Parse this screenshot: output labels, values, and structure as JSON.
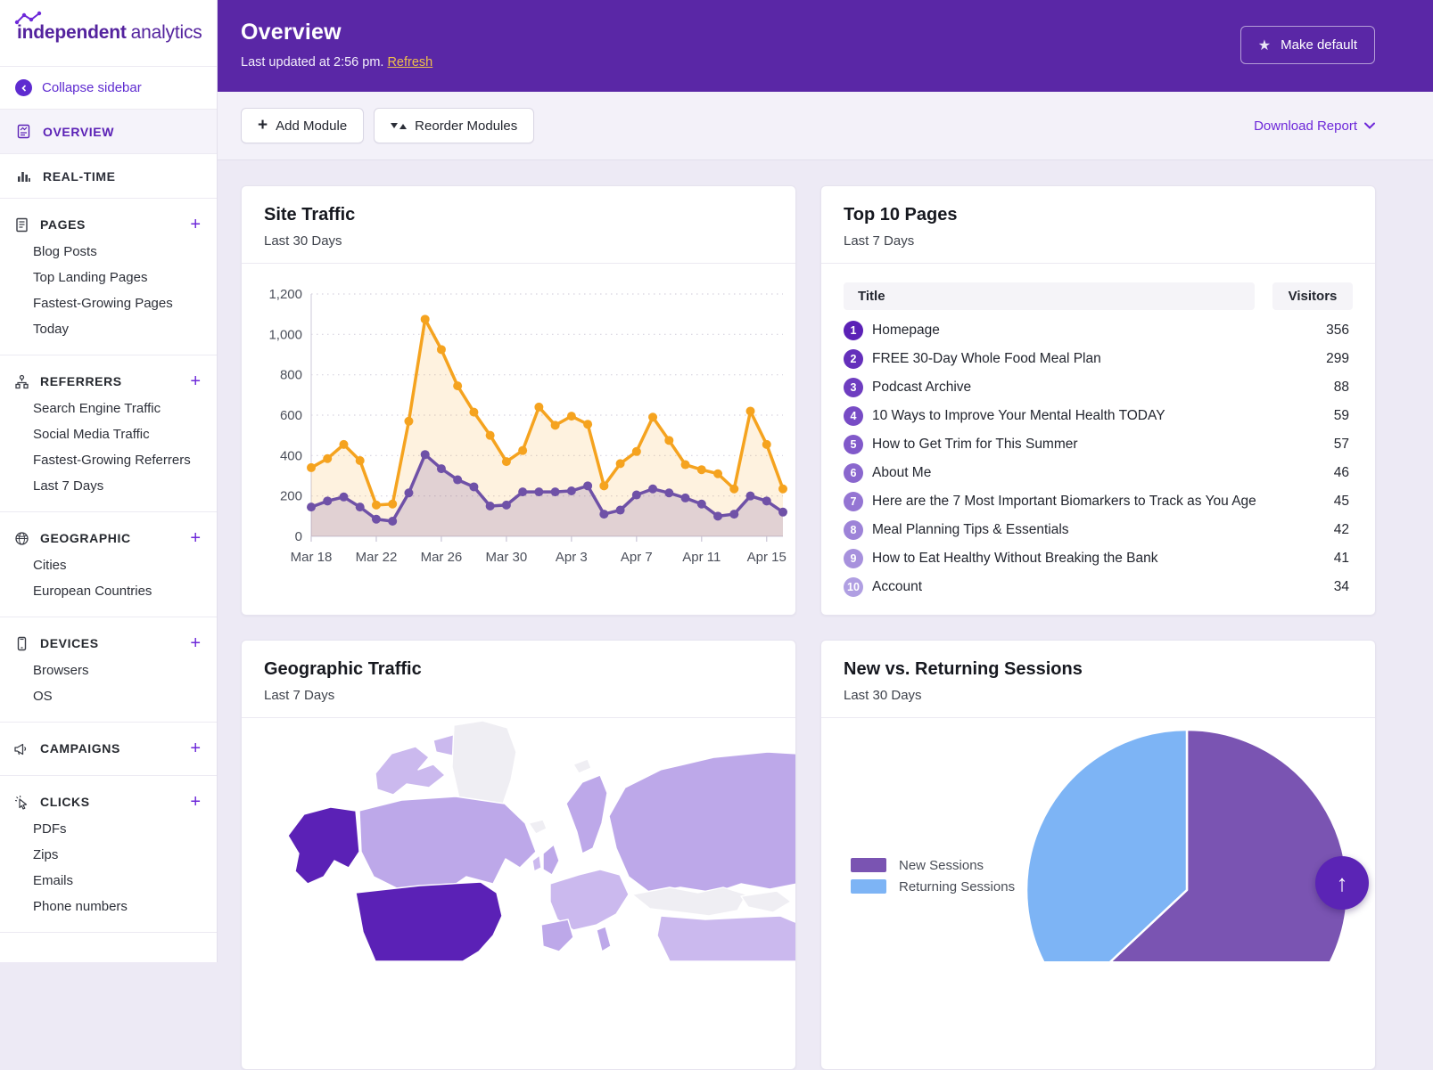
{
  "brand": {
    "name_bold": "independent",
    "name_light": "analytics"
  },
  "colors": {
    "header_purple": "#5a27a6",
    "accent_purple": "#6d28d9",
    "active_purple": "#5b21b6",
    "refresh_gold": "#efc04a",
    "line_orange": "#f5a31f",
    "line_purple": "#6f51a7",
    "pie_purple": "#7a54b2",
    "pie_blue": "#7db4f5",
    "rank_dark": "#5b21b6",
    "rank_light": "#b09fe2",
    "map_high": "#5b21b6",
    "map_medium": "#bda8e9",
    "map_low": "#cbb9ee",
    "map_none": "#efeef3"
  },
  "sidebar": {
    "collapse_label": "Collapse sidebar",
    "top_items": [
      {
        "label": "OVERVIEW",
        "icon": "overview-icon",
        "active": true
      },
      {
        "label": "REAL-TIME",
        "icon": "realtime-icon",
        "active": false
      }
    ],
    "sections": [
      {
        "label": "PAGES",
        "icon": "pages-icon",
        "items": [
          "Blog Posts",
          "Top Landing Pages",
          "Fastest-Growing Pages",
          "Today"
        ]
      },
      {
        "label": "REFERRERS",
        "icon": "referrers-icon",
        "items": [
          "Search Engine Traffic",
          "Social Media Traffic",
          "Fastest-Growing Referrers",
          "Last 7 Days"
        ]
      },
      {
        "label": "GEOGRAPHIC",
        "icon": "globe-icon",
        "items": [
          "Cities",
          "European Countries"
        ]
      },
      {
        "label": "DEVICES",
        "icon": "device-icon",
        "items": [
          "Browsers",
          "OS"
        ]
      },
      {
        "label": "CAMPAIGNS",
        "icon": "megaphone-icon",
        "items": []
      },
      {
        "label": "CLICKS",
        "icon": "cursor-icon",
        "items": [
          "PDFs",
          "Zips",
          "Emails",
          "Phone numbers"
        ]
      }
    ]
  },
  "header": {
    "title": "Overview",
    "last_updated": "Last updated at 2:56 pm.",
    "refresh_label": "Refresh",
    "make_default_label": "Make default"
  },
  "toolbar": {
    "add_module": "Add Module",
    "reorder_modules": "Reorder Modules",
    "download_report": "Download Report"
  },
  "cards": {
    "site_traffic": {
      "title": "Site Traffic",
      "subtitle": "Last 30 Days"
    },
    "top_pages": {
      "title": "Top 10 Pages",
      "subtitle": "Last 7 Days",
      "columns": [
        "Title",
        "Visitors"
      ],
      "rows": [
        {
          "rank": 1,
          "title": "Homepage",
          "visitors": 356
        },
        {
          "rank": 2,
          "title": "FREE 30-Day Whole Food Meal Plan",
          "visitors": 299
        },
        {
          "rank": 3,
          "title": "Podcast Archive",
          "visitors": 88
        },
        {
          "rank": 4,
          "title": "10 Ways to Improve Your Mental Health TODAY",
          "visitors": 59
        },
        {
          "rank": 5,
          "title": "How to Get Trim for This Summer",
          "visitors": 57
        },
        {
          "rank": 6,
          "title": "About Me",
          "visitors": 46
        },
        {
          "rank": 7,
          "title": "Here are the 7 Most Important Biomarkers to Track as You Age",
          "visitors": 45
        },
        {
          "rank": 8,
          "title": "Meal Planning Tips & Essentials",
          "visitors": 42
        },
        {
          "rank": 9,
          "title": "How to Eat Healthy Without Breaking the Bank",
          "visitors": 41
        },
        {
          "rank": 10,
          "title": "Account",
          "visitors": 34
        }
      ]
    },
    "geo": {
      "title": "Geographic Traffic",
      "subtitle": "Last 7 Days"
    },
    "sessions": {
      "title": "New vs. Returning Sessions",
      "subtitle": "Last 30 Days",
      "legend": [
        "New Sessions",
        "Returning Sessions"
      ]
    }
  },
  "chart_data": [
    {
      "type": "line",
      "title": "Site Traffic",
      "subtitle": "Last 30 Days",
      "x": [
        "Mar 18",
        "Mar 19",
        "Mar 20",
        "Mar 21",
        "Mar 22",
        "Mar 23",
        "Mar 24",
        "Mar 25",
        "Mar 26",
        "Mar 27",
        "Mar 28",
        "Mar 29",
        "Mar 30",
        "Mar 31",
        "Apr 1",
        "Apr 2",
        "Apr 3",
        "Apr 4",
        "Apr 5",
        "Apr 6",
        "Apr 7",
        "Apr 8",
        "Apr 9",
        "Apr 10",
        "Apr 11",
        "Apr 12",
        "Apr 13",
        "Apr 14",
        "Apr 15",
        "Apr 16"
      ],
      "xticks": [
        "Mar 18",
        "Mar 22",
        "Mar 26",
        "Mar 30",
        "Apr 3",
        "Apr 7",
        "Apr 11",
        "Apr 15"
      ],
      "yticks": [
        0,
        200,
        400,
        600,
        800,
        1000,
        1200
      ],
      "ylim": [
        0,
        1200
      ],
      "grid": "dotted-horizontal",
      "legend_position": "none",
      "series": [
        {
          "name": "series_orange",
          "color": "#f5a31f",
          "values": [
            340,
            385,
            455,
            375,
            155,
            160,
            570,
            1075,
            925,
            745,
            615,
            500,
            370,
            425,
            640,
            550,
            595,
            555,
            250,
            360,
            420,
            590,
            475,
            355,
            330,
            310,
            235,
            620,
            455,
            235
          ]
        },
        {
          "name": "series_purple",
          "color": "#6f51a7",
          "values": [
            145,
            175,
            195,
            145,
            85,
            75,
            215,
            405,
            335,
            280,
            245,
            150,
            155,
            220,
            220,
            220,
            225,
            250,
            110,
            130,
            205,
            235,
            215,
            190,
            160,
            100,
            110,
            200,
            175,
            120
          ]
        }
      ]
    },
    {
      "type": "pie",
      "title": "New vs. Returning Sessions",
      "subtitle": "Last 30 Days",
      "labels": [
        "New Sessions",
        "Returning Sessions"
      ],
      "values_pct": [
        63,
        37
      ],
      "colors": [
        "#7a54b2",
        "#7db4f5"
      ],
      "legend_position": "left"
    },
    {
      "type": "heatmap",
      "subtype": "choropleth-world-map",
      "title": "Geographic Traffic",
      "subtitle": "Last 7 Days",
      "note": "No numeric labels visible; qualitative shading only",
      "levels": [
        {
          "level": "high",
          "regions": [
            "United States (incl. Alaska)"
          ]
        },
        {
          "level": "medium",
          "regions": [
            "Canada",
            "Russia",
            "Scandinavia",
            "United Kingdom",
            "Western Europe",
            "China"
          ]
        },
        {
          "level": "none",
          "regions": [
            "Greenland",
            "Iceland",
            "Svalbard",
            "Kazakhstan",
            "Mongolia"
          ]
        }
      ]
    }
  ]
}
